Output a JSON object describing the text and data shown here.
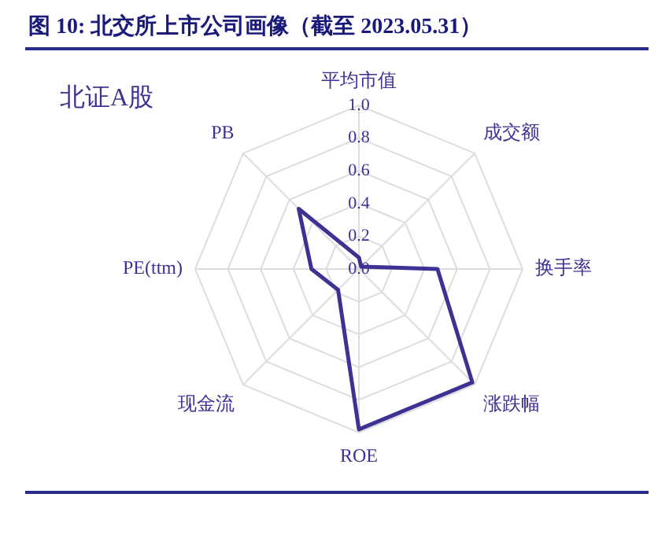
{
  "chart_data": {
    "type": "radar",
    "title": "图 10:  北交所上市公司画像（截至 2023.05.31）",
    "subtitle": "北证A股",
    "categories": [
      "平均市值",
      "成交额",
      "换手率",
      "涨跌幅",
      "ROE",
      "现金流",
      "PE(ttm)",
      "PB"
    ],
    "series": [
      {
        "color": "#3d3294",
        "values": [
          0.07,
          0.02,
          0.48,
          0.98,
          0.98,
          0.18,
          0.29,
          0.52
        ]
      }
    ],
    "ylim": [
      0,
      1
    ],
    "yticks": [
      {
        "value": 0,
        "label": "0.0"
      },
      0.2,
      0.4,
      0.6,
      0.8,
      {
        "value": 1,
        "label": "1.0"
      }
    ],
    "grid": true,
    "legend": false
  }
}
